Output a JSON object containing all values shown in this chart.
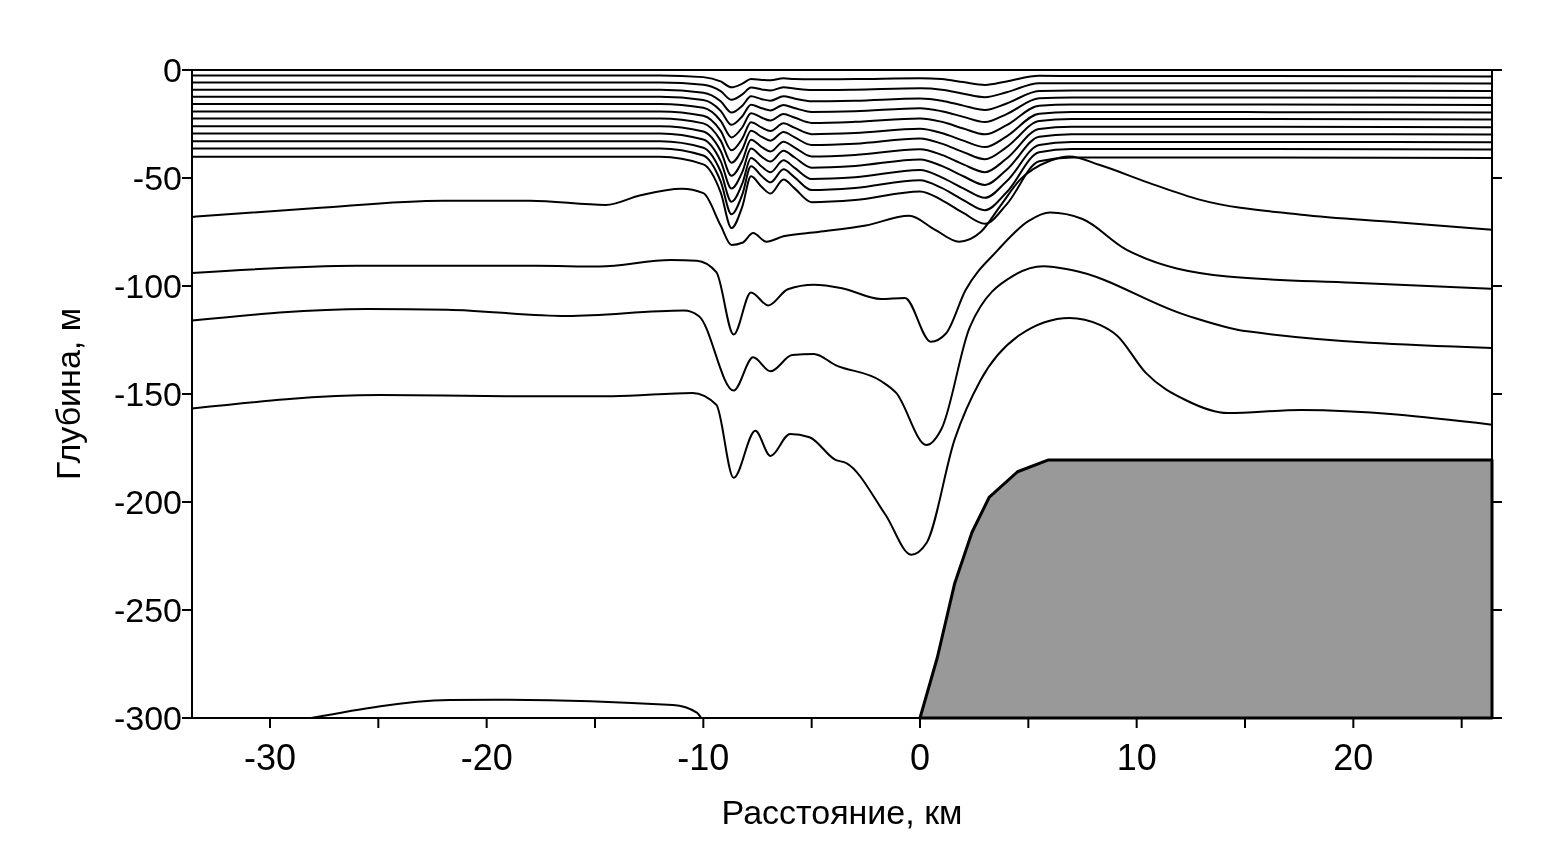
{
  "chart_data": {
    "type": "line",
    "xlabel": "Расстояние, км",
    "ylabel": "Глубина, м",
    "xlim": [
      -33.6,
      26.4
    ],
    "ylim": [
      -300,
      0
    ],
    "xticks": [
      -30,
      {
        "value": -25,
        "label": null
      },
      -20,
      {
        "value": -15,
        "label": null
      },
      -10,
      {
        "value": -5,
        "label": null
      },
      0,
      {
        "value": 5,
        "label": null
      },
      10,
      {
        "value": 15,
        "label": null
      },
      20,
      {
        "value": 25,
        "label": null
      }
    ],
    "yticks": [
      0,
      -50,
      -100,
      -150,
      -200,
      -250,
      -300
    ],
    "x": [
      -33.6,
      -12,
      -10,
      -9.2,
      -8.7,
      -8.2,
      -7.8,
      -7.3,
      -6.9,
      -6.3,
      -5.8,
      -5,
      -3,
      0,
      1,
      2,
      3,
      4,
      5.5,
      7,
      15,
      26.4
    ],
    "series": [
      {
        "color": "#000000",
        "values": [
          -2.5,
          -2.5,
          -3.3,
          -5.3,
          -8,
          -6.3,
          -4.2,
          -4.6,
          -4.8,
          -3.8,
          -4.2,
          -4.3,
          -4.2,
          -3.8,
          -4.2,
          -5.6,
          -6.9,
          -5.3,
          -2.7,
          -2.8,
          -2.8,
          -3
        ]
      },
      {
        "color": "#000000",
        "values": [
          -5.8,
          -5.8,
          -6.8,
          -9.8,
          -13.8,
          -11.3,
          -8.1,
          -9,
          -9.5,
          -8,
          -8.6,
          -9.3,
          -9.1,
          -8.5,
          -9.1,
          -11,
          -12.6,
          -10.3,
          -6.1,
          -6.1,
          -6.1,
          -6.3
        ]
      },
      {
        "color": "#000000",
        "values": [
          -9.2,
          -9.2,
          -10.5,
          -14.5,
          -19.7,
          -16.5,
          -12.2,
          -13.5,
          -14.2,
          -12.2,
          -13.2,
          -14.5,
          -14.2,
          -13.2,
          -14.2,
          -16.5,
          -18.5,
          -15.5,
          -9.7,
          -9.5,
          -9.5,
          -9.7
        ]
      },
      {
        "color": "#000000",
        "values": [
          -12.4,
          -12.4,
          -13.9,
          -18.9,
          -25.4,
          -21.4,
          -16.1,
          -17.7,
          -18.7,
          -16.2,
          -17.6,
          -19.4,
          -19.1,
          -17.7,
          -19.1,
          -21.7,
          -24.1,
          -20.4,
          -13.1,
          -12.7,
          -12.7,
          -12.9
        ]
      },
      {
        "color": "#000000",
        "values": [
          -15.7,
          -15.7,
          -17.5,
          -23.5,
          -31.2,
          -26.5,
          -20,
          -22.1,
          -23.4,
          -20.4,
          -22,
          -24.5,
          -24,
          -22.4,
          -24,
          -27.1,
          -29.8,
          -25.5,
          -16.5,
          -16,
          -16,
          -16.2
        ]
      },
      {
        "color": "#000000",
        "values": [
          -19.2,
          -19.2,
          -21.2,
          -28.2,
          -37.2,
          -31.7,
          -24.2,
          -26.7,
          -28.2,
          -24.7,
          -26.7,
          -29.7,
          -29.2,
          -27.2,
          -29.2,
          -32.7,
          -35.7,
          -30.7,
          -20.2,
          -19.5,
          -19.5,
          -19.7
        ]
      },
      {
        "color": "#000000",
        "values": [
          -22.4,
          -22.4,
          -24.7,
          -32.7,
          -42.9,
          -36.7,
          -28.1,
          -31,
          -32.7,
          -28.7,
          -31.1,
          -34.7,
          -34.1,
          -31.7,
          -34.1,
          -38,
          -41.3,
          -35.7,
          -23.6,
          -22.7,
          -22.7,
          -22.9
        ]
      },
      {
        "color": "#000000",
        "values": [
          -26,
          -26,
          -28.5,
          -37.5,
          -49,
          -42,
          -32.3,
          -35.7,
          -37.7,
          -33.2,
          -35.8,
          -40,
          -39.3,
          -36.7,
          -39.3,
          -43.7,
          -47.3,
          -41,
          -27.3,
          -26.3,
          -26.3,
          -26.5
        ]
      },
      {
        "color": "#000000",
        "values": [
          -29.4,
          -29.4,
          -32.2,
          -42.2,
          -54.9,
          -47.2,
          -36.4,
          -40.2,
          -42.4,
          -37.4,
          -40.4,
          -45.2,
          -44.4,
          -41.4,
          -44.4,
          -49.2,
          -53.2,
          -46.2,
          -30.9,
          -29.7,
          -29.7,
          -29.9
        ]
      },
      {
        "color": "#000000",
        "values": [
          -33,
          -33,
          -36,
          -47,
          -61,
          -52.5,
          -40.7,
          -44.8,
          -47.3,
          -41.8,
          -45.2,
          -50.5,
          -49.7,
          -46.3,
          -49.7,
          -54.8,
          -59.2,
          -51.5,
          -34.7,
          -33.3,
          -33.3,
          -33.5
        ]
      },
      {
        "color": "#000000",
        "values": [
          -36.3,
          -36.3,
          -39.6,
          -51.6,
          -66.8,
          -57.6,
          -44.6,
          -49.2,
          -52,
          -46,
          -49.6,
          -55.6,
          -54.6,
          -51,
          -54.6,
          -60.2,
          -64.9,
          -56.6,
          -38.1,
          -36.6,
          -36.6,
          -36.8
        ]
      },
      {
        "color": "#000000",
        "values": [
          -40.2,
          -40.2,
          -43.7,
          -56.7,
          -73.2,
          -63.2,
          -49.2,
          -54.2,
          -57.2,
          -50.7,
          -54.7,
          -61.2,
          -60.2,
          -56.2,
          -60.2,
          -66.2,
          -71.2,
          -62.2,
          -42.2,
          -40.5,
          -40.5,
          -40.7
        ]
      },
      {
        "color": "#000000",
        "x": [
          -33.6,
          -28,
          -22,
          -18,
          -14.5,
          -12.9,
          -11,
          -10,
          -9.2,
          -8.7,
          -8.2,
          -7.7,
          -7.1,
          -6.3,
          -4.7,
          -2.5,
          -0.5,
          0.7,
          1.8,
          2.8,
          3.7,
          4.6,
          6,
          6.9,
          8.3,
          10.5,
          12.9,
          17.6,
          22,
          26.4
        ],
        "values": [
          -68,
          -64,
          -60.5,
          -60.5,
          -62.5,
          -58,
          -55,
          -57,
          -72,
          -81,
          -80,
          -75.5,
          -79.5,
          -77,
          -75,
          -72,
          -67.5,
          -74,
          -79.5,
          -75,
          -63,
          -51,
          -42,
          -40,
          -44,
          -52,
          -60,
          -67,
          -70.5,
          -74
        ]
      },
      {
        "color": "#000000",
        "x": [
          -33.6,
          -26,
          -17.7,
          -14.8,
          -11.5,
          -10.3,
          -9.4,
          -8.6,
          -7.8,
          -7,
          -6.1,
          -4.9,
          -3.6,
          -1.8,
          -0.7,
          0.5,
          1.2,
          2.1,
          3.6,
          5,
          6,
          7.5,
          9.5,
          14.2,
          20,
          26.4
        ],
        "values": [
          -94,
          -90.6,
          -90.6,
          -91,
          -88,
          -88.3,
          -93.6,
          -122.5,
          -103,
          -109,
          -101.5,
          -99.4,
          -101,
          -106,
          -105.5,
          -125.8,
          -122,
          -102,
          -83.3,
          -70,
          -66,
          -69,
          -83,
          -95.6,
          -98.5,
          -101.3
        ]
      },
      {
        "color": "#000000",
        "x": [
          -33.6,
          -25.5,
          -21.8,
          -16.3,
          -10.9,
          -10.2,
          -8.6,
          -7.7,
          -6.9,
          -5.9,
          -4.9,
          -3.9,
          -1.8,
          -1.1,
          0.3,
          1,
          2.3,
          4.4,
          5.7,
          7,
          12.3,
          15.1,
          26.4
        ],
        "values": [
          -116,
          -110.6,
          -111,
          -113.9,
          -111.4,
          -114,
          -148.4,
          -133,
          -139.5,
          -132,
          -131.5,
          -136.6,
          -144,
          -149.5,
          -173.6,
          -166,
          -119,
          -94.7,
          -90.8,
          -92.6,
          -113.6,
          -121,
          -128.7
        ]
      },
      {
        "color": "#000000",
        "x": [
          -33.6,
          -24.9,
          -19.1,
          -14.2,
          -10.5,
          -9.4,
          -8.6,
          -7.6,
          -6.9,
          -6,
          -5.1,
          -3.9,
          -3.4,
          -1.6,
          -0.4,
          0.3,
          1.6,
          2.8,
          4.6,
          6.9,
          8.3,
          9.1,
          10.4,
          12.3,
          14.2,
          17.6,
          26.4
        ],
        "values": [
          -156.7,
          -150.5,
          -151,
          -151,
          -149.5,
          -155,
          -188.8,
          -167,
          -178.7,
          -168.5,
          -170,
          -180.5,
          -182,
          -205.8,
          -224.4,
          -219,
          -171,
          -143.5,
          -122.7,
          -114.8,
          -118,
          -123,
          -140,
          -153,
          -158.8,
          -157.4,
          -164.2
        ]
      },
      {
        "color": "#000000",
        "x": [
          -28.1,
          -21.7,
          -19.6,
          -11.4,
          -10.3,
          -10.1
        ],
        "values": [
          -300,
          -291.7,
          -291.5,
          -294,
          -297.5,
          -300
        ]
      },
      {
        "type": "area",
        "color": "#999999",
        "x": [
          0,
          0.8,
          1.6,
          2.4,
          3.2,
          4.5,
          5.9,
          26.4,
          26.4
        ],
        "values": [
          -300,
          -272,
          -237.7,
          -214,
          -197.7,
          -186,
          -180.6,
          -180.6,
          -300
        ]
      }
    ]
  }
}
